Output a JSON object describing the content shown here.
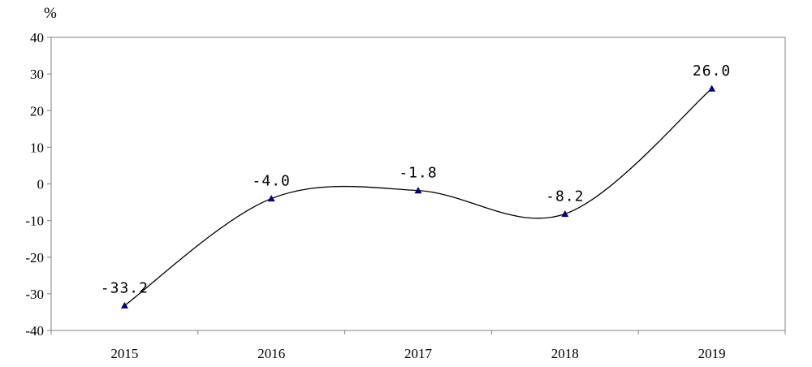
{
  "chart_data": {
    "type": "line",
    "title": "",
    "xlabel": "",
    "ylabel": "%",
    "categories": [
      "2015",
      "2016",
      "2017",
      "2018",
      "2019"
    ],
    "series": [
      {
        "values": [
          -33.2,
          -4.0,
          -1.8,
          -8.2,
          26.0
        ],
        "data_labels": [
          "-33.2",
          "-4.0",
          "-1.8",
          "-8.2",
          "26.0"
        ],
        "line_color": "#000000",
        "marker": "triangle",
        "marker_color": "#000080",
        "smooth": true
      }
    ],
    "ylim": [
      -40,
      40
    ],
    "yticks": [
      "40",
      "30",
      "20",
      "10",
      "0",
      "-10",
      "-20",
      "-30",
      "-40"
    ],
    "grid": false,
    "legend": "none"
  }
}
